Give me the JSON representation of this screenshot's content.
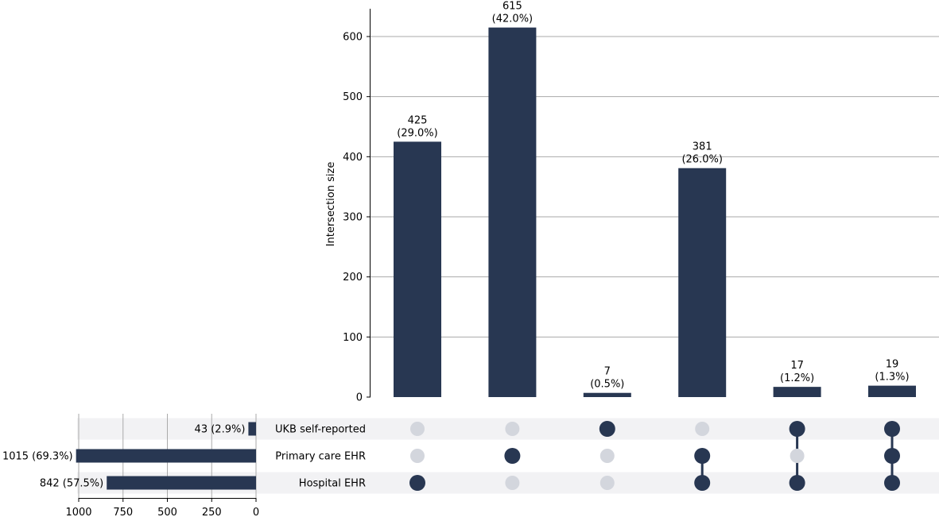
{
  "chart_data": {
    "type": "bar",
    "title": "",
    "colors": {
      "bar": "#283752",
      "dot_active": "#283752",
      "dot_inactive": "#d3d6dd",
      "band": "#f2f2f4",
      "grid": "#aaaaaa"
    },
    "intersections": {
      "ylabel": "Intersection size",
      "ylim": [
        0,
        640
      ],
      "yticks": [
        0,
        100,
        200,
        300,
        400,
        500,
        600
      ],
      "grid": true,
      "bars": [
        {
          "value": 425,
          "label_value": "425",
          "label_pct": "(29.0%)",
          "members": [
            "Hospital EHR"
          ]
        },
        {
          "value": 615,
          "label_value": "615",
          "label_pct": "(42.0%)",
          "members": [
            "Primary care EHR"
          ]
        },
        {
          "value": 7,
          "label_value": "7",
          "label_pct": "(0.5%)",
          "members": [
            "UKB self-reported"
          ]
        },
        {
          "value": 381,
          "label_value": "381",
          "label_pct": "(26.0%)",
          "members": [
            "Primary care EHR",
            "Hospital EHR"
          ]
        },
        {
          "value": 17,
          "label_value": "17",
          "label_pct": "(1.2%)",
          "members": [
            "UKB self-reported",
            "Hospital EHR"
          ]
        },
        {
          "value": 19,
          "label_value": "19",
          "label_pct": "(1.3%)",
          "members": [
            "UKB self-reported",
            "Primary care EHR",
            "Hospital EHR"
          ]
        }
      ]
    },
    "sets": {
      "xlim": [
        1000,
        0
      ],
      "xticks": [
        1000,
        750,
        500,
        250,
        0
      ],
      "grid": true,
      "items": [
        {
          "name": "UKB self-reported",
          "value": 43,
          "label": "43 (2.9%)"
        },
        {
          "name": "Primary care EHR",
          "value": 1015,
          "label": "1015 (69.3%)"
        },
        {
          "name": "Hospital EHR",
          "value": 842,
          "label": "842 (57.5%)"
        }
      ]
    }
  }
}
